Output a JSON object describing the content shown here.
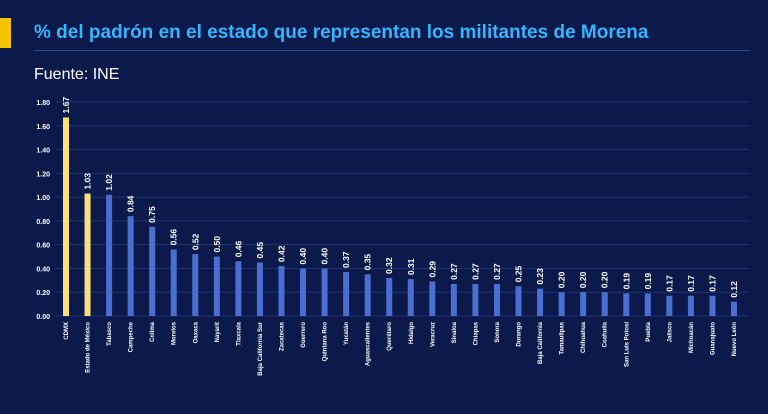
{
  "title": "% del padrón en el estado que representan los militantes de Morena",
  "source": "Fuente: INE",
  "colors": {
    "background": "#0b1a4a",
    "title": "#35b5ff",
    "accent": "#f5c400",
    "highlight_bar": "#fadf7a",
    "bar": "#4a6fd1"
  },
  "chart_data": {
    "type": "bar",
    "title": "% del padrón en el estado que representan los militantes de Morena",
    "xlabel": "",
    "ylabel": "",
    "ylim": [
      0,
      1.8
    ],
    "yticks": [
      "0.00",
      "0.20",
      "0.40",
      "0.60",
      "0.80",
      "1.00",
      "1.20",
      "1.40",
      "1.60",
      "1.80"
    ],
    "grid": true,
    "categories": [
      "CDMX",
      "Estado de México",
      "Tabasco",
      "Campeche",
      "Colima",
      "Morelos",
      "Oaxaca",
      "Nayarit",
      "Tlaxcala",
      "Baja California Sur",
      "Zacatecas",
      "Guerrero",
      "Quintana Roo",
      "Yucatán",
      "Aguascalientes",
      "Querétaro",
      "Hidalgo",
      "Veracruz",
      "Sinaloa",
      "Chiapas",
      "Sonora",
      "Durango",
      "Baja California",
      "Tamaulipas",
      "Chihuahua",
      "Coahuila",
      "San Luis Potosí",
      "Puebla",
      "Jalisco",
      "Michoacán",
      "Guanajuato",
      "Nuevo León"
    ],
    "values": [
      1.67,
      1.03,
      1.02,
      0.84,
      0.75,
      0.56,
      0.52,
      0.5,
      0.46,
      0.45,
      0.42,
      0.4,
      0.4,
      0.37,
      0.35,
      0.32,
      0.31,
      0.29,
      0.27,
      0.27,
      0.27,
      0.25,
      0.23,
      0.2,
      0.2,
      0.2,
      0.19,
      0.19,
      0.17,
      0.17,
      0.17,
      0.12
    ],
    "labels": [
      "1.67",
      "1.03",
      "1.02",
      "0.84",
      "0.75",
      "0.56",
      "0.52",
      "0.50",
      "0.46",
      "0.45",
      "0.42",
      "0.40",
      "0.40",
      "0.37",
      "0.35",
      "0.32",
      "0.31",
      "0.29",
      "0.27",
      "0.27",
      "0.27",
      "0.25",
      "0.23",
      "0.20",
      "0.20",
      "0.20",
      "0.19",
      "0.19",
      "0.17",
      "0.17",
      "0.17",
      "0.12"
    ],
    "highlighted": [
      "CDMX",
      "Estado de México"
    ]
  }
}
